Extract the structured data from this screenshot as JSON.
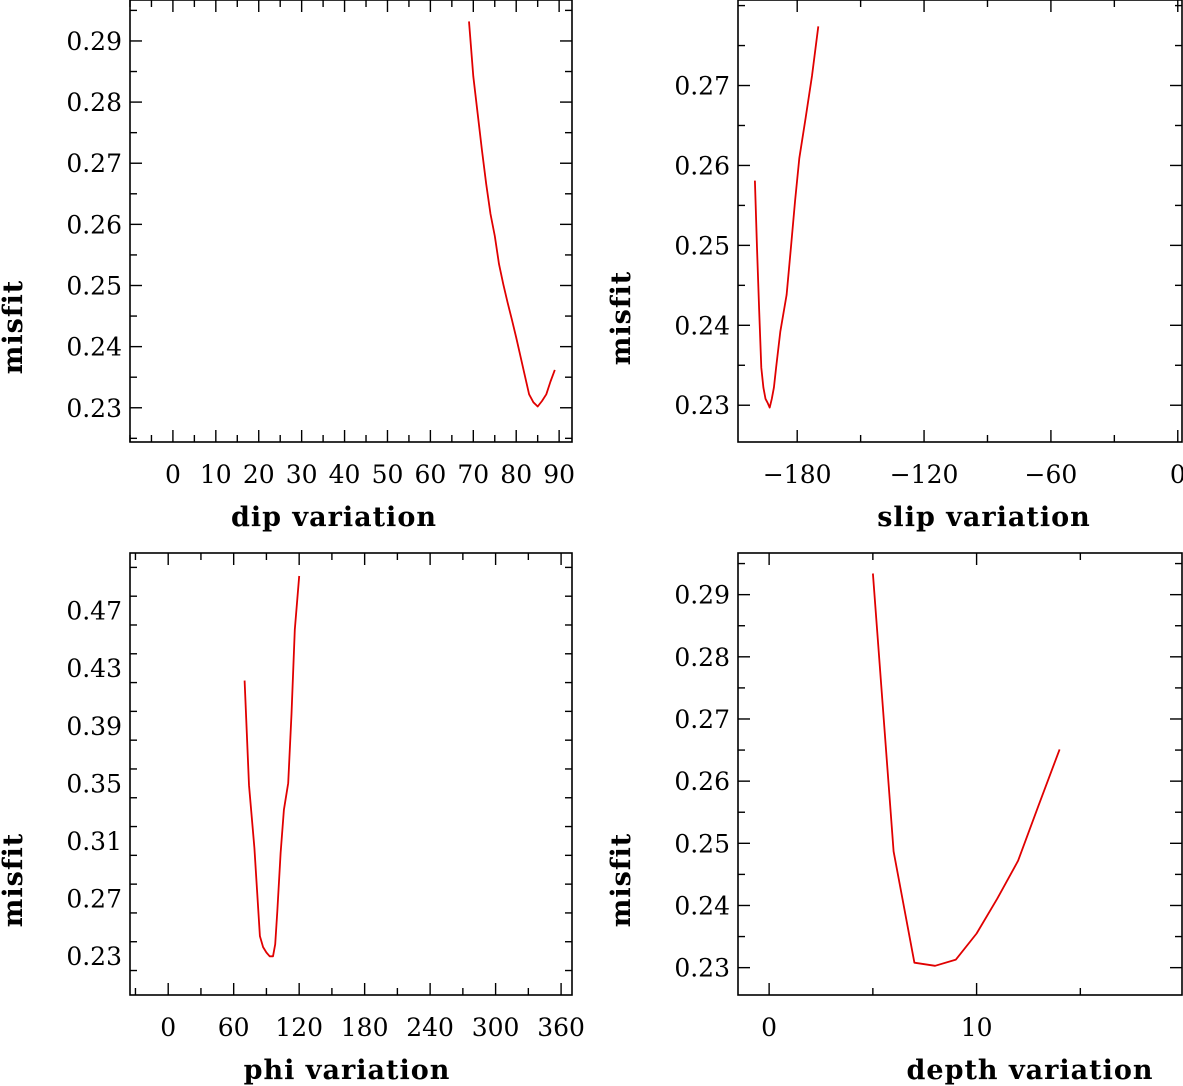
{
  "chart_data": [
    {
      "type": "line",
      "xlabel": "dip    variation",
      "ylabel": "misfit",
      "xlim": [
        -10,
        93
      ],
      "ylim": [
        0.2244,
        0.2967
      ],
      "xticks": [
        0,
        10,
        20,
        30,
        40,
        50,
        60,
        70,
        80,
        90
      ],
      "xtick_labels": [
        "0",
        "10",
        "20",
        "30",
        "40",
        "50",
        "60",
        "70",
        "80",
        "90"
      ],
      "yticks": [
        0.23,
        0.24,
        0.25,
        0.26,
        0.27,
        0.28,
        0.29
      ],
      "ytick_labels": [
        "0.23",
        "0.24",
        "0.25",
        "0.26",
        "0.27",
        "0.28",
        "0.29"
      ],
      "grid": false,
      "line_color": "#e00000",
      "series": [
        {
          "x": [
            69,
            70,
            71,
            72,
            73,
            74,
            75,
            76,
            77,
            78,
            79,
            80,
            81,
            82,
            83,
            84,
            85,
            86,
            87,
            88,
            89
          ],
          "y": [
            0.2932,
            0.2842,
            0.2782,
            0.2722,
            0.2666,
            0.2617,
            0.2581,
            0.2535,
            0.2502,
            0.2472,
            0.2444,
            0.2415,
            0.2384,
            0.2353,
            0.2322,
            0.2309,
            0.2302,
            0.2311,
            0.2322,
            0.2343,
            0.2362
          ]
        }
      ]
    },
    {
      "type": "line",
      "xlabel": "slip   variation",
      "ylabel": "misfit",
      "xlim": [
        -208,
        2
      ],
      "ylim": [
        0.2254,
        0.2807
      ],
      "xticks": [
        -180,
        -120,
        -60,
        0
      ],
      "xtick_labels": [
        "−180",
        "−120",
        "−60",
        "0"
      ],
      "yticks": [
        0.23,
        0.24,
        0.25,
        0.26,
        0.27
      ],
      "ytick_labels": [
        "0.23",
        "0.24",
        "0.25",
        "0.26",
        "0.27"
      ],
      "grid": false,
      "line_color": "#e00000",
      "series": [
        {
          "x": [
            -200,
            -199,
            -198,
            -197,
            -196,
            -195,
            -194,
            -193,
            -192,
            -191,
            -190,
            -188,
            -185,
            -183,
            -181,
            -179,
            -176,
            -173,
            -170
          ],
          "y": [
            0.2581,
            0.2497,
            0.2421,
            0.2347,
            0.2322,
            0.2308,
            0.2303,
            0.2297,
            0.2308,
            0.2322,
            0.2347,
            0.2392,
            0.2438,
            0.2497,
            0.2556,
            0.2609,
            0.266,
            0.2712,
            0.2774
          ]
        }
      ]
    },
    {
      "type": "line",
      "xlabel": "phi    variation",
      "ylabel": "misfit",
      "xlim": [
        -35,
        370
      ],
      "ylim": [
        0.203,
        0.51
      ],
      "xticks": [
        0,
        60,
        120,
        180,
        240,
        300,
        360
      ],
      "xtick_labels": [
        "0",
        "60",
        "120",
        "180",
        "240",
        "300",
        "360"
      ],
      "yticks": [
        0.23,
        0.27,
        0.31,
        0.35,
        0.39,
        0.43,
        0.47
      ],
      "ytick_labels": [
        "0.23",
        "0.27",
        "0.31",
        "0.35",
        "0.39",
        "0.43",
        "0.47"
      ],
      "grid": false,
      "line_color": "#e00000",
      "series": [
        {
          "x": [
            70,
            74,
            79,
            84,
            87,
            90,
            93,
            96,
            98,
            100,
            103,
            106,
            110,
            113,
            116,
            120
          ],
          "y": [
            0.4214,
            0.3487,
            0.3052,
            0.2439,
            0.2363,
            0.2325,
            0.2299,
            0.2299,
            0.2382,
            0.261,
            0.3015,
            0.3316,
            0.3502,
            0.3981,
            0.4567,
            0.494
          ]
        }
      ]
    },
    {
      "type": "line",
      "xlabel": "depth  variation",
      "ylabel": "misfit",
      "xlim": [
        -1.5,
        19.9
      ],
      "ylim": [
        0.2256,
        0.2967
      ],
      "xticks": [
        0,
        10
      ],
      "xtick_labels": [
        "0",
        "10"
      ],
      "yticks": [
        0.23,
        0.24,
        0.25,
        0.26,
        0.27,
        0.28,
        0.29
      ],
      "ytick_labels": [
        "0.23",
        "0.24",
        "0.25",
        "0.26",
        "0.27",
        "0.28",
        "0.29"
      ],
      "grid": false,
      "line_color": "#e00000",
      "series": [
        {
          "x": [
            5,
            6,
            7,
            8,
            9,
            10,
            11,
            12,
            13,
            14
          ],
          "y": [
            0.2934,
            0.2487,
            0.2308,
            0.2303,
            0.2313,
            0.2355,
            0.2411,
            0.2472,
            0.2562,
            0.2651
          ]
        }
      ]
    }
  ]
}
